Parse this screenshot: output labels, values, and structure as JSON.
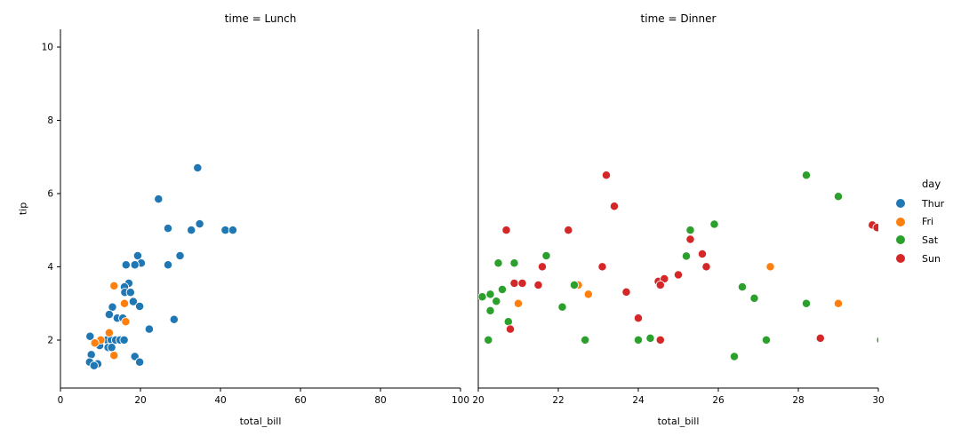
{
  "chart_data": {
    "type": "scatter",
    "legend": {
      "title": "day",
      "position": "right",
      "entries": [
        {
          "label": "Thur",
          "color": "#1f77b4"
        },
        {
          "label": "Fri",
          "color": "#ff7f0e"
        },
        {
          "label": "Sat",
          "color": "#2ca02c"
        },
        {
          "label": "Sun",
          "color": "#d62728"
        }
      ]
    },
    "shared_y": true,
    "ylim": [
      0.69,
      10.48
    ],
    "yticks": [
      2,
      4,
      6,
      8,
      10
    ],
    "facets": [
      {
        "title": "time = Lunch",
        "xlabel": "total_bill",
        "ylabel": "tip",
        "xlim": [
          0,
          100
        ],
        "xticks": [
          0,
          20,
          40,
          60,
          80,
          100
        ],
        "series": [
          {
            "name": "Thur",
            "color": "#1f77b4",
            "points": [
              [
                34.3,
                6.7
              ],
              [
                24.5,
                5.85
              ],
              [
                26.9,
                5.05
              ],
              [
                32.7,
                5.0
              ],
              [
                34.8,
                5.17
              ],
              [
                41.2,
                5.0
              ],
              [
                43.1,
                5.0
              ],
              [
                29.9,
                4.3
              ],
              [
                19.3,
                4.3
              ],
              [
                20.2,
                4.1
              ],
              [
                16.4,
                4.05
              ],
              [
                18.6,
                4.05
              ],
              [
                26.9,
                4.05
              ],
              [
                17.1,
                3.55
              ],
              [
                16.0,
                3.45
              ],
              [
                16.1,
                3.3
              ],
              [
                17.5,
                3.3
              ],
              [
                18.2,
                3.05
              ],
              [
                19.8,
                2.92
              ],
              [
                13.0,
                2.9
              ],
              [
                12.2,
                2.7
              ],
              [
                14.2,
                2.6
              ],
              [
                15.6,
                2.6
              ],
              [
                28.4,
                2.56
              ],
              [
                22.2,
                2.3
              ],
              [
                7.4,
                2.1
              ],
              [
                10.3,
                2.0
              ],
              [
                11.6,
                2.0
              ],
              [
                12.7,
                2.0
              ],
              [
                13.8,
                2.0
              ],
              [
                14.9,
                2.0
              ],
              [
                15.9,
                2.0
              ],
              [
                9.8,
                1.85
              ],
              [
                11.9,
                1.8
              ],
              [
                12.8,
                1.8
              ],
              [
                7.7,
                1.6
              ],
              [
                18.6,
                1.55
              ],
              [
                19.8,
                1.4
              ],
              [
                7.3,
                1.4
              ],
              [
                9.3,
                1.35
              ],
              [
                8.4,
                1.3
              ]
            ]
          },
          {
            "name": "Fri",
            "color": "#ff7f0e",
            "points": [
              [
                13.4,
                3.48
              ],
              [
                16.0,
                3.0
              ],
              [
                12.2,
                2.2
              ],
              [
                16.3,
                2.5
              ],
              [
                10.1,
                2.0
              ],
              [
                8.6,
                1.92
              ],
              [
                13.4,
                1.58
              ]
            ]
          }
        ]
      },
      {
        "title": "time = Dinner",
        "xlabel": "total_bill",
        "xlim": [
          20,
          30
        ],
        "xticks": [
          20,
          22,
          24,
          26,
          28,
          30
        ],
        "series": [
          {
            "name": "Fri",
            "color": "#ff7f0e",
            "points": [
              [
                22.5,
                3.5
              ],
              [
                22.75,
                3.25
              ],
              [
                21.0,
                3.0
              ],
              [
                27.3,
                4.0
              ],
              [
                29.0,
                3.0
              ]
            ]
          },
          {
            "name": "Sat",
            "color": "#2ca02c",
            "points": [
              [
                28.2,
                6.5
              ],
              [
                29.0,
                5.92
              ],
              [
                25.9,
                5.16
              ],
              [
                25.3,
                5.0
              ],
              [
                25.2,
                4.29
              ],
              [
                21.7,
                4.3
              ],
              [
                20.5,
                4.1
              ],
              [
                20.9,
                4.1
              ],
              [
                22.4,
                3.5
              ],
              [
                26.6,
                3.45
              ],
              [
                26.9,
                3.14
              ],
              [
                28.2,
                3.0
              ],
              [
                20.1,
                3.18
              ],
              [
                20.3,
                3.25
              ],
              [
                20.6,
                3.38
              ],
              [
                20.45,
                3.06
              ],
              [
                20.3,
                2.8
              ],
              [
                22.1,
                2.9
              ],
              [
                20.75,
                2.5
              ],
              [
                22.67,
                2.0
              ],
              [
                24.0,
                2.0
              ],
              [
                24.3,
                2.05
              ],
              [
                26.4,
                1.55
              ],
              [
                27.2,
                2.0
              ],
              [
                20.25,
                2.0
              ],
              [
                30.06,
                2.0
              ]
            ]
          },
          {
            "name": "Sun",
            "color": "#d62728",
            "points": [
              [
                23.2,
                6.5
              ],
              [
                23.4,
                5.65
              ],
              [
                20.7,
                5.0
              ],
              [
                22.25,
                5.0
              ],
              [
                29.85,
                5.14
              ],
              [
                29.97,
                5.07
              ],
              [
                25.3,
                4.75
              ],
              [
                25.6,
                4.35
              ],
              [
                21.6,
                4.0
              ],
              [
                23.1,
                4.0
              ],
              [
                25.7,
                4.0
              ],
              [
                25.0,
                3.78
              ],
              [
                23.7,
                3.31
              ],
              [
                20.9,
                3.55
              ],
              [
                21.1,
                3.55
              ],
              [
                21.5,
                3.5
              ],
              [
                24.5,
                3.6
              ],
              [
                24.65,
                3.67
              ],
              [
                24.55,
                3.5
              ],
              [
                24.0,
                2.6
              ],
              [
                20.8,
                2.3
              ],
              [
                24.55,
                2.0
              ],
              [
                28.55,
                2.05
              ]
            ]
          }
        ]
      }
    ]
  }
}
